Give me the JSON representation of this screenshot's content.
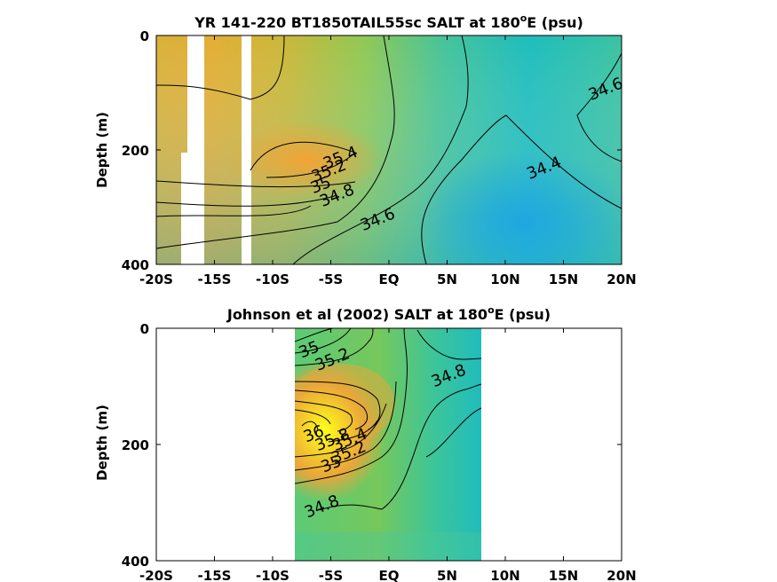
{
  "chart_data": [
    {
      "type": "heatmap",
      "title": "YR 141-220 BT1850TAIL55sc SALT at 180",
      "title_degree": "o",
      "title_suffix": "E (psu)",
      "xlabel": "",
      "ylabel": "Depth (m)",
      "x_tick_labels": [
        "-20S",
        "-15S",
        "-10S",
        "-5S",
        "EQ",
        "5N",
        "10N",
        "15N",
        "20N"
      ],
      "x_ticks": [
        -20,
        -15,
        -10,
        -5,
        0,
        5,
        10,
        15,
        20
      ],
      "y_tick_labels": [
        "0",
        "200",
        "400"
      ],
      "y_ticks": [
        0,
        200,
        400
      ],
      "xlim": [
        -20,
        20
      ],
      "ylim": [
        400,
        0
      ],
      "grid": false,
      "data_gaps_latitude": [
        [
          -17.3,
          -15.8
        ],
        [
          -12.9,
          -12.1
        ]
      ],
      "contour_labels": [
        {
          "text": "35.4",
          "lat": -4,
          "depth": 222
        },
        {
          "text": "35.2",
          "lat": -5,
          "depth": 245
        },
        {
          "text": "35",
          "lat": -5.7,
          "depth": 270
        },
        {
          "text": "34.8",
          "lat": -4.3,
          "depth": 288
        },
        {
          "text": "34.6",
          "lat": -0.8,
          "depth": 330
        },
        {
          "text": "34.4",
          "lat": 13.5,
          "depth": 240
        },
        {
          "text": "34.6",
          "lat": 18.8,
          "depth": 102
        }
      ]
    },
    {
      "type": "heatmap",
      "title": "Johnson et al (2002) SALT at 180",
      "title_degree": "o",
      "title_suffix": "E (psu)",
      "xlabel": "",
      "ylabel": "Depth (m)",
      "x_tick_labels": [
        "-20S",
        "-15S",
        "-10S",
        "-5S",
        "EQ",
        "5N",
        "10N",
        "15N",
        "20N"
      ],
      "x_ticks": [
        -20,
        -15,
        -10,
        -5,
        0,
        5,
        10,
        15,
        20
      ],
      "y_tick_labels": [
        "0",
        "200",
        "400"
      ],
      "y_ticks": [
        0,
        200,
        400
      ],
      "xlim": [
        -20,
        20
      ],
      "ylim": [
        400,
        0
      ],
      "grid": false,
      "data_coverage_latitude": [
        -8,
        8
      ],
      "contour_labels": [
        {
          "text": "35",
          "lat": -6.7,
          "depth": 45
        },
        {
          "text": "35.2",
          "lat": -4.7,
          "depth": 62
        },
        {
          "text": "34.8",
          "lat": 5.3,
          "depth": 90
        },
        {
          "text": "36",
          "lat": -6.3,
          "depth": 190
        },
        {
          "text": "35.8",
          "lat": -4.7,
          "depth": 200
        },
        {
          "text": "35.4",
          "lat": -3.2,
          "depth": 200
        },
        {
          "text": "35.2",
          "lat": -3.3,
          "depth": 222
        },
        {
          "text": "35",
          "lat": -4.8,
          "depth": 242
        },
        {
          "text": "34.8",
          "lat": -5.6,
          "depth": 315
        }
      ]
    }
  ]
}
